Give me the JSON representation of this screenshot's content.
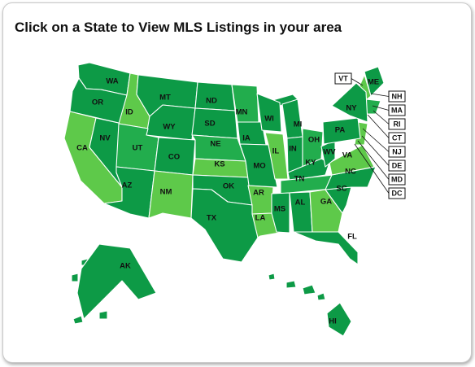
{
  "title": "Click on a State to View MLS Listings in your area",
  "colors": {
    "dark_green": "#0d9a46",
    "medium_green": "#22ad4d",
    "light_green": "#5ec94a",
    "border": "#ffffff",
    "card_border": "#c9c9c9"
  },
  "states": [
    {
      "code": "WA",
      "label": "WA",
      "shade": "dark_green"
    },
    {
      "code": "OR",
      "label": "OR",
      "shade": "dark_green"
    },
    {
      "code": "CA",
      "label": "CA",
      "shade": "light_green"
    },
    {
      "code": "NV",
      "label": "NV",
      "shade": "dark_green"
    },
    {
      "code": "ID",
      "label": "ID",
      "shade": "light_green"
    },
    {
      "code": "MT",
      "label": "MT",
      "shade": "dark_green"
    },
    {
      "code": "WY",
      "label": "WY",
      "shade": "dark_green"
    },
    {
      "code": "UT",
      "label": "UT",
      "shade": "medium_green"
    },
    {
      "code": "AZ",
      "label": "AZ",
      "shade": "dark_green"
    },
    {
      "code": "CO",
      "label": "CO",
      "shade": "dark_green"
    },
    {
      "code": "NM",
      "label": "NM",
      "shade": "light_green"
    },
    {
      "code": "ND",
      "label": "ND",
      "shade": "dark_green"
    },
    {
      "code": "SD",
      "label": "SD",
      "shade": "dark_green"
    },
    {
      "code": "NE",
      "label": "NE",
      "shade": "medium_green"
    },
    {
      "code": "KS",
      "label": "KS",
      "shade": "light_green"
    },
    {
      "code": "OK",
      "label": "OK",
      "shade": "dark_green"
    },
    {
      "code": "TX",
      "label": "TX",
      "shade": "dark_green"
    },
    {
      "code": "MN",
      "label": "MN",
      "shade": "medium_green"
    },
    {
      "code": "IA",
      "label": "IA",
      "shade": "dark_green"
    },
    {
      "code": "MO",
      "label": "MO",
      "shade": "dark_green"
    },
    {
      "code": "AR",
      "label": "AR",
      "shade": "light_green"
    },
    {
      "code": "LA",
      "label": "LA",
      "shade": "light_green"
    },
    {
      "code": "WI",
      "label": "WI",
      "shade": "dark_green"
    },
    {
      "code": "IL",
      "label": "IL",
      "shade": "light_green"
    },
    {
      "code": "MI",
      "label": "MI",
      "shade": "dark_green"
    },
    {
      "code": "IN",
      "label": "IN",
      "shade": "dark_green"
    },
    {
      "code": "OH",
      "label": "OH",
      "shade": "medium_green"
    },
    {
      "code": "KY",
      "label": "KY",
      "shade": "dark_green"
    },
    {
      "code": "TN",
      "label": "TN",
      "shade": "medium_green"
    },
    {
      "code": "MS",
      "label": "MS",
      "shade": "dark_green"
    },
    {
      "code": "AL",
      "label": "AL",
      "shade": "dark_green"
    },
    {
      "code": "GA",
      "label": "GA",
      "shade": "light_green"
    },
    {
      "code": "FL",
      "label": "FL",
      "shade": "dark_green"
    },
    {
      "code": "SC",
      "label": "SC",
      "shade": "dark_green"
    },
    {
      "code": "NC",
      "label": "NC",
      "shade": "dark_green"
    },
    {
      "code": "VA",
      "label": "VA",
      "shade": "light_green"
    },
    {
      "code": "WV",
      "label": "WV",
      "shade": "dark_green"
    },
    {
      "code": "PA",
      "label": "PA",
      "shade": "dark_green"
    },
    {
      "code": "NY",
      "label": "NY",
      "shade": "dark_green"
    },
    {
      "code": "ME",
      "label": "ME",
      "shade": "dark_green"
    },
    {
      "code": "AK",
      "label": "AK",
      "shade": "dark_green"
    },
    {
      "code": "HI",
      "label": "HI",
      "shade": "dark_green"
    }
  ],
  "callouts": [
    {
      "code": "VT",
      "label": "VT"
    },
    {
      "code": "NH",
      "label": "NH"
    },
    {
      "code": "MA",
      "label": "MA"
    },
    {
      "code": "RI",
      "label": "RI"
    },
    {
      "code": "CT",
      "label": "CT"
    },
    {
      "code": "NJ",
      "label": "NJ"
    },
    {
      "code": "DE",
      "label": "DE"
    },
    {
      "code": "MD",
      "label": "MD"
    },
    {
      "code": "DC",
      "label": "DC"
    }
  ]
}
